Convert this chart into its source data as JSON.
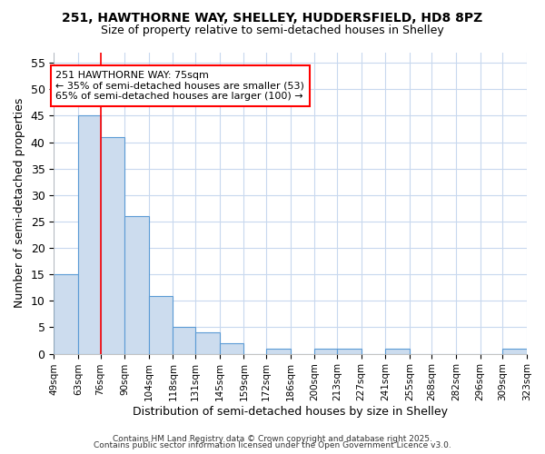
{
  "title1": "251, HAWTHORNE WAY, SHELLEY, HUDDERSFIELD, HD8 8PZ",
  "title2": "Size of property relative to semi-detached houses in Shelley",
  "xlabel": "Distribution of semi-detached houses by size in Shelley",
  "ylabel": "Number of semi-detached properties",
  "bin_edges": [
    49,
    63,
    76,
    90,
    104,
    118,
    131,
    145,
    159,
    172,
    186,
    200,
    213,
    227,
    241,
    255,
    268,
    282,
    296,
    309,
    323
  ],
  "counts": [
    15,
    45,
    41,
    26,
    11,
    5,
    4,
    2,
    0,
    1,
    0,
    1,
    1,
    0,
    1,
    0,
    0,
    0,
    0,
    1
  ],
  "bar_color": "#ccdcee",
  "bar_edge_color": "#5b9bd5",
  "property_line_x": 76,
  "annotation_text1": "251 HAWTHORNE WAY: 75sqm",
  "annotation_text2": "← 35% of semi-detached houses are smaller (53)",
  "annotation_text3": "65% of semi-detached houses are larger (100) →",
  "tick_labels": [
    "49sqm",
    "63sqm",
    "76sqm",
    "90sqm",
    "104sqm",
    "118sqm",
    "131sqm",
    "145sqm",
    "159sqm",
    "172sqm",
    "186sqm",
    "200sqm",
    "213sqm",
    "227sqm",
    "241sqm",
    "255sqm",
    "268sqm",
    "282sqm",
    "296sqm",
    "309sqm",
    "323sqm"
  ],
  "ylim": [
    0,
    57
  ],
  "yticks": [
    0,
    5,
    10,
    15,
    20,
    25,
    30,
    35,
    40,
    45,
    50,
    55
  ],
  "bg_color": "#ffffff",
  "grid_color": "#c8d8ee",
  "footnote1": "Contains HM Land Registry data © Crown copyright and database right 2025.",
  "footnote2": "Contains public sector information licensed under the Open Government Licence v3.0."
}
